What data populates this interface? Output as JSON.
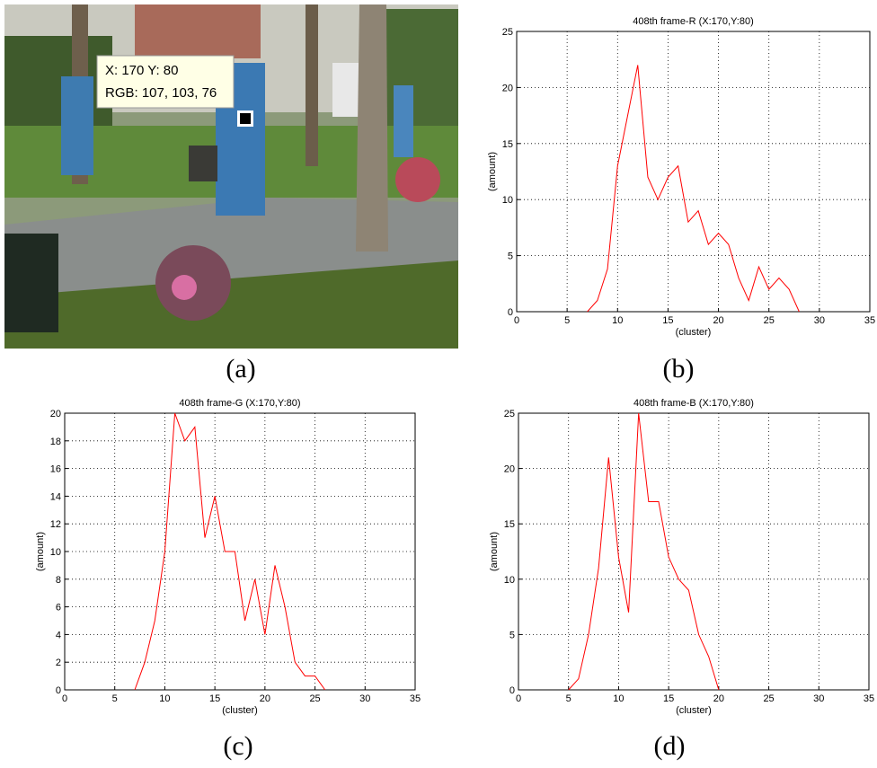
{
  "image": {
    "tooltip": [
      "X: 170 Y: 80",
      "RGB: 107, 103, 76"
    ]
  },
  "captions": [
    "(a)",
    "(b)",
    "(c)",
    "(d)"
  ],
  "chart_data": [
    {
      "type": "line",
      "title": "408th frame-R (X:170,Y:80)",
      "xlabel": "(cluster)",
      "ylabel": "(amount)",
      "x": [
        7,
        8,
        9,
        10,
        11,
        12,
        13,
        14,
        15,
        16,
        17,
        18,
        19,
        20,
        21,
        22,
        23,
        24,
        25,
        26,
        27,
        28
      ],
      "series": [
        {
          "color": "#ff0000",
          "values": [
            0,
            1,
            3.8,
            13,
            17.5,
            22,
            12,
            10,
            12,
            13,
            8,
            9,
            6,
            7,
            6,
            3,
            1,
            4,
            2,
            3,
            2,
            0
          ]
        }
      ],
      "xlim": [
        0,
        35
      ],
      "ylim": [
        0,
        25
      ],
      "xticks": [
        0,
        5,
        10,
        15,
        20,
        25,
        30,
        35
      ],
      "yticks": [
        0,
        5,
        10,
        15,
        20,
        25
      ],
      "grid": true
    },
    {
      "type": "line",
      "title": "408th frame-G (X:170,Y:80)",
      "xlabel": "(cluster)",
      "ylabel": "(amount)",
      "x": [
        7,
        8,
        9,
        10,
        11,
        12,
        13,
        14,
        15,
        16,
        17,
        18,
        19,
        20,
        21,
        22,
        23,
        24,
        25,
        26
      ],
      "series": [
        {
          "color": "#ff0000",
          "values": [
            0,
            2,
            5,
            10,
            20,
            18,
            19,
            11,
            14,
            10,
            10,
            5,
            8,
            4,
            9,
            6,
            2,
            1,
            1,
            0
          ]
        }
      ],
      "xlim": [
        0,
        35
      ],
      "ylim": [
        0,
        20
      ],
      "xticks": [
        0,
        5,
        10,
        15,
        20,
        25,
        30,
        35
      ],
      "yticks": [
        0,
        2,
        4,
        6,
        8,
        10,
        12,
        14,
        16,
        18,
        20
      ],
      "grid": true
    },
    {
      "type": "line",
      "title": "408th frame-B (X:170,Y:80)",
      "xlabel": "(cluster)",
      "ylabel": "(amount)",
      "x": [
        5,
        6,
        7,
        8,
        9,
        10,
        11,
        12,
        13,
        14,
        15,
        16,
        17,
        18,
        19,
        20
      ],
      "series": [
        {
          "color": "#ff0000",
          "values": [
            0,
            1,
            5,
            11,
            21,
            12,
            7,
            25,
            17,
            17,
            12,
            10,
            9,
            5,
            3,
            0
          ]
        }
      ],
      "xlim": [
        0,
        35
      ],
      "ylim": [
        0,
        25
      ],
      "xticks": [
        0,
        5,
        10,
        15,
        20,
        25,
        30,
        35
      ],
      "yticks": [
        0,
        5,
        10,
        15,
        20,
        25
      ],
      "grid": true
    }
  ]
}
